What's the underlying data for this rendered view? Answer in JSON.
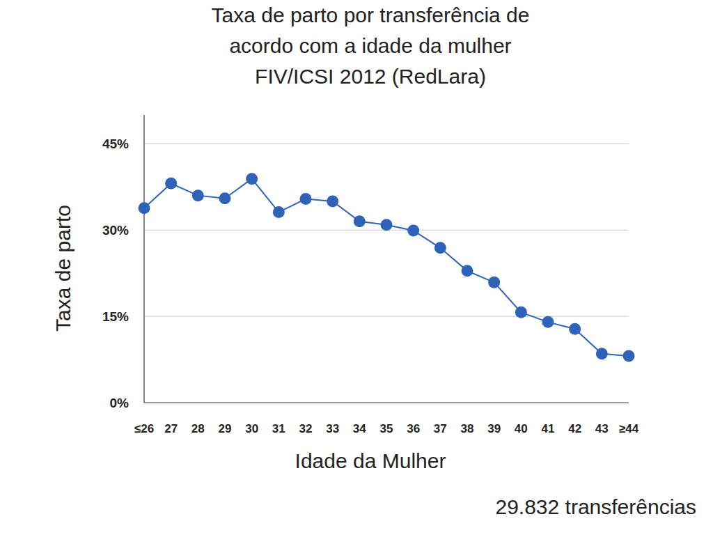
{
  "chart_data": {
    "type": "line",
    "title": "Taxa de parto por transferência de\nacordo com a idade da mulher\nFIV/ICSI 2012 (RedLara)",
    "x_label": "Idade da Mulher",
    "y_label": "Taxa de parto",
    "annotations": [
      "29.832 transferências"
    ],
    "categories": [
      "≤26",
      "27",
      "28",
      "29",
      "30",
      "31",
      "32",
      "33",
      "34",
      "35",
      "36",
      "37",
      "38",
      "39",
      "40",
      "41",
      "42",
      "43",
      "≥44"
    ],
    "values": [
      33.8,
      38.1,
      36.0,
      35.5,
      38.9,
      33.1,
      35.4,
      35.0,
      31.5,
      30.9,
      29.9,
      26.9,
      22.9,
      20.9,
      15.7,
      14.0,
      12.8,
      8.5,
      8.1
    ],
    "color": "#2f63b8",
    "marker": "circle",
    "ylim": [
      0,
      50
    ],
    "yticks": [
      {
        "value": 0,
        "label": "0%"
      },
      {
        "value": 15,
        "label": "15%"
      },
      {
        "value": 30,
        "label": "30%"
      },
      {
        "value": 45,
        "label": "45%"
      }
    ],
    "grid": true
  }
}
